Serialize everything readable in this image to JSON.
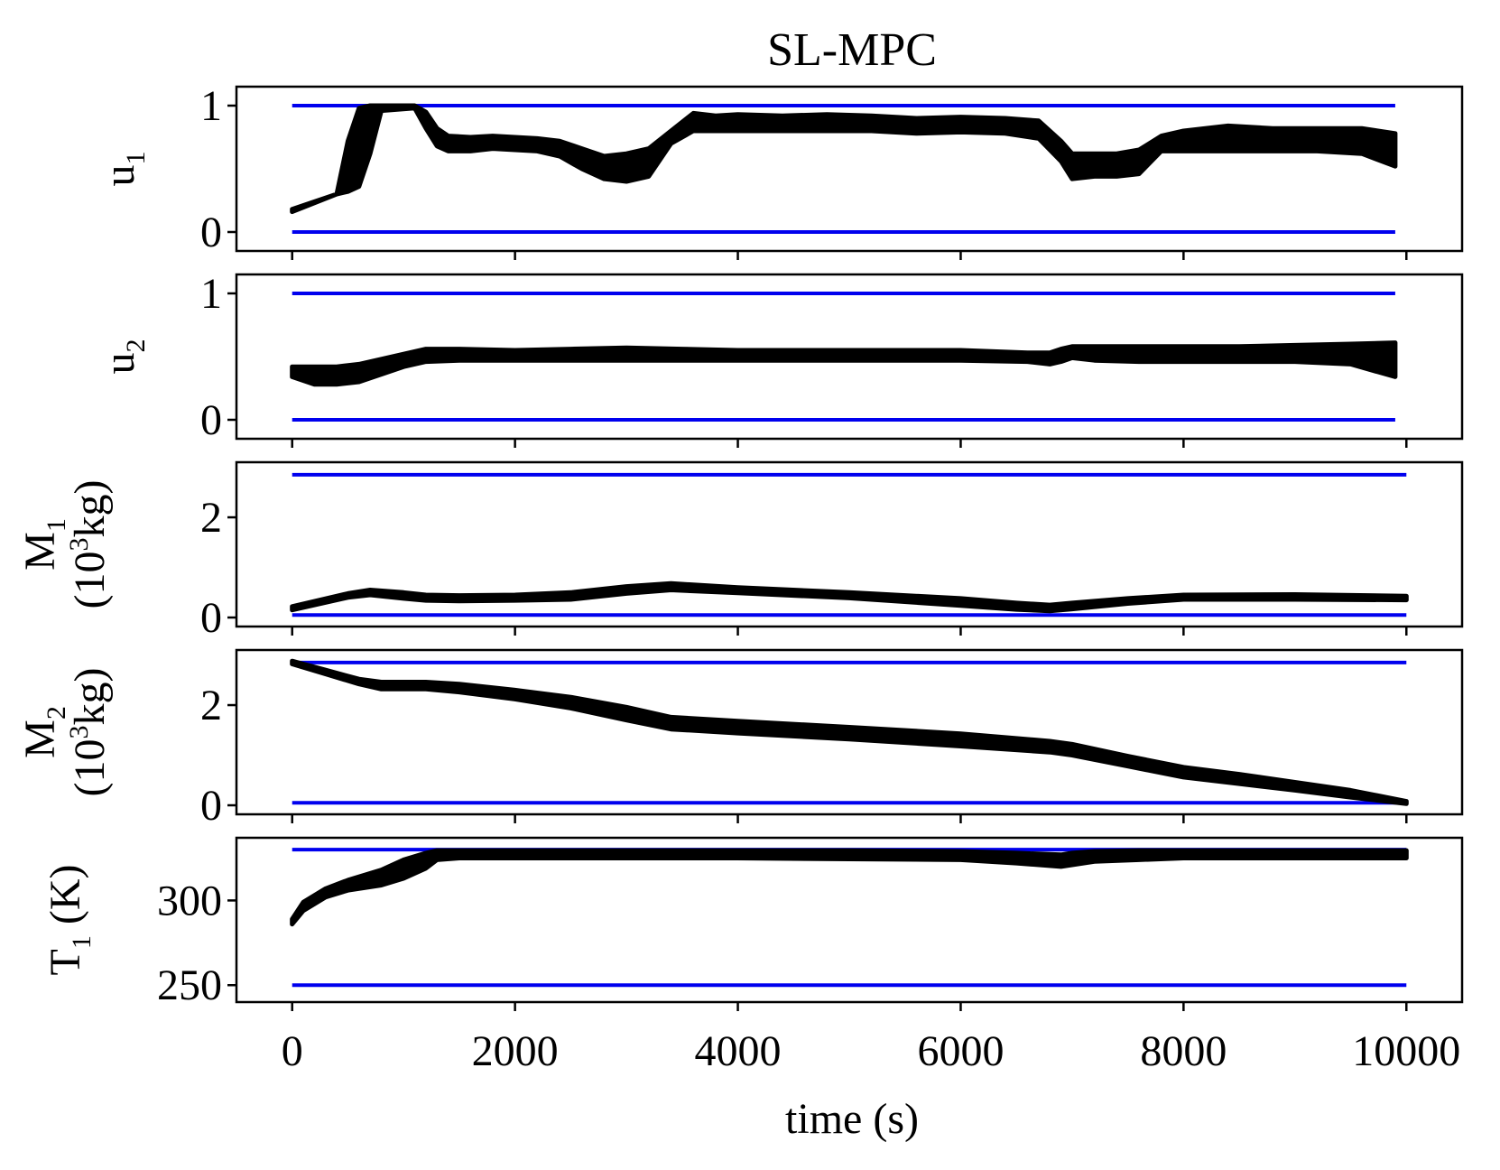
{
  "chart_data": {
    "type": "line",
    "title": "SL-MPC",
    "xlabel": "time (s)",
    "xlim": [
      -500,
      10500
    ],
    "xticks": [
      0,
      2000,
      4000,
      6000,
      8000,
      10000
    ],
    "xtick_labels": [
      "0",
      "2000",
      "4000",
      "6000",
      "8000",
      "10000"
    ],
    "bound_color": "#0000ee",
    "trajectory_color": "#000000",
    "subplots": [
      {
        "ylabel": "u",
        "ylabel_sub": "1",
        "ylim": [
          -0.15,
          1.15
        ],
        "yticks": [
          0,
          1
        ],
        "ytick_labels": [
          "0",
          "1"
        ],
        "bounds": {
          "lower": 0,
          "upper": 1,
          "x_range": [
            0,
            9900
          ]
        },
        "band": {
          "x": [
            0,
            400,
            500,
            600,
            700,
            800,
            1100,
            1200,
            1300,
            1400,
            1600,
            1800,
            2000,
            2200,
            2400,
            2600,
            2800,
            3000,
            3200,
            3400,
            3600,
            3800,
            4000,
            4400,
            4800,
            5200,
            5600,
            6000,
            6400,
            6700,
            6900,
            7000,
            7200,
            7400,
            7600,
            7800,
            8000,
            8400,
            8800,
            9200,
            9600,
            9900
          ],
          "upper": [
            0.18,
            0.3,
            0.72,
            0.98,
            1.0,
            1.0,
            1.0,
            0.95,
            0.82,
            0.76,
            0.75,
            0.76,
            0.75,
            0.74,
            0.72,
            0.66,
            0.6,
            0.62,
            0.66,
            0.8,
            0.94,
            0.92,
            0.93,
            0.92,
            0.93,
            0.92,
            0.9,
            0.91,
            0.9,
            0.88,
            0.72,
            0.62,
            0.62,
            0.62,
            0.65,
            0.76,
            0.8,
            0.84,
            0.82,
            0.82,
            0.82,
            0.78
          ],
          "lower": [
            0.16,
            0.3,
            0.32,
            0.36,
            0.62,
            0.96,
            0.98,
            0.82,
            0.68,
            0.64,
            0.64,
            0.66,
            0.65,
            0.64,
            0.6,
            0.5,
            0.42,
            0.4,
            0.44,
            0.7,
            0.8,
            0.8,
            0.8,
            0.8,
            0.8,
            0.8,
            0.78,
            0.79,
            0.78,
            0.74,
            0.56,
            0.42,
            0.44,
            0.44,
            0.46,
            0.64,
            0.64,
            0.64,
            0.64,
            0.64,
            0.62,
            0.52
          ]
        }
      },
      {
        "ylabel": "u",
        "ylabel_sub": "2",
        "ylim": [
          -0.15,
          1.15
        ],
        "yticks": [
          0,
          1
        ],
        "ytick_labels": [
          "0",
          "1"
        ],
        "bounds": {
          "lower": 0,
          "upper": 1,
          "x_range": [
            0,
            9900
          ]
        },
        "band": {
          "x": [
            0,
            200,
            400,
            600,
            800,
            1000,
            1200,
            1500,
            2000,
            2500,
            3000,
            3500,
            4000,
            5000,
            6000,
            6600,
            6800,
            6900,
            7000,
            7200,
            7600,
            8000,
            8500,
            9000,
            9500,
            9900
          ],
          "upper": [
            0.42,
            0.42,
            0.42,
            0.44,
            0.48,
            0.52,
            0.56,
            0.56,
            0.55,
            0.56,
            0.57,
            0.56,
            0.55,
            0.55,
            0.55,
            0.53,
            0.53,
            0.56,
            0.58,
            0.58,
            0.58,
            0.58,
            0.58,
            0.59,
            0.6,
            0.61
          ],
          "lower": [
            0.34,
            0.28,
            0.28,
            0.3,
            0.36,
            0.42,
            0.46,
            0.47,
            0.47,
            0.47,
            0.47,
            0.47,
            0.47,
            0.47,
            0.47,
            0.46,
            0.44,
            0.46,
            0.49,
            0.47,
            0.46,
            0.46,
            0.46,
            0.46,
            0.44,
            0.34
          ]
        }
      },
      {
        "ylabel": "M",
        "ylabel_sub": "1",
        "ylabel_units": "(10",
        "ylabel_units_sup": "3",
        "ylabel_units_rest": "kg)",
        "ylim": [
          -0.18,
          3.1
        ],
        "yticks": [
          0,
          2
        ],
        "ytick_labels": [
          "0",
          "2"
        ],
        "bounds": {
          "lower": 0.05,
          "upper": 2.85,
          "x_range": [
            0,
            10000
          ]
        },
        "band": {
          "x": [
            0,
            500,
            700,
            1000,
            1200,
            1500,
            2000,
            2500,
            3000,
            3400,
            4000,
            5000,
            6000,
            6500,
            6800,
            7000,
            7500,
            8000,
            9000,
            10000
          ],
          "upper": [
            0.22,
            0.48,
            0.55,
            0.5,
            0.45,
            0.44,
            0.45,
            0.5,
            0.62,
            0.68,
            0.6,
            0.5,
            0.38,
            0.29,
            0.25,
            0.29,
            0.38,
            0.45,
            0.46,
            0.43
          ],
          "lower": [
            0.15,
            0.4,
            0.45,
            0.38,
            0.34,
            0.33,
            0.34,
            0.36,
            0.48,
            0.55,
            0.49,
            0.39,
            0.24,
            0.16,
            0.13,
            0.17,
            0.28,
            0.36,
            0.36,
            0.35
          ]
        }
      },
      {
        "ylabel": "M",
        "ylabel_sub": "2",
        "ylabel_units": "(10",
        "ylabel_units_sup": "3",
        "ylabel_units_rest": "kg)",
        "ylim": [
          -0.18,
          3.1
        ],
        "yticks": [
          0,
          2
        ],
        "ytick_labels": [
          "0",
          "2"
        ],
        "bounds": {
          "lower": 0.05,
          "upper": 2.85,
          "x_range": [
            0,
            10000
          ]
        },
        "band": {
          "x": [
            0,
            300,
            600,
            800,
            1200,
            1500,
            2000,
            2500,
            3000,
            3400,
            4000,
            5000,
            6000,
            6800,
            7000,
            7500,
            8000,
            8500,
            9000,
            9500,
            10000
          ],
          "upper": [
            2.88,
            2.7,
            2.52,
            2.46,
            2.46,
            2.42,
            2.3,
            2.16,
            1.96,
            1.76,
            1.68,
            1.56,
            1.43,
            1.28,
            1.22,
            0.98,
            0.76,
            0.62,
            0.46,
            0.3,
            0.08
          ],
          "lower": [
            2.82,
            2.62,
            2.42,
            2.32,
            2.32,
            2.26,
            2.12,
            1.94,
            1.7,
            1.52,
            1.44,
            1.32,
            1.18,
            1.06,
            1.0,
            0.78,
            0.56,
            0.43,
            0.3,
            0.16,
            0.03
          ]
        }
      },
      {
        "ylabel": "T",
        "ylabel_sub": "1",
        "ylabel_units": "(K)",
        "ylim": [
          240,
          337
        ],
        "yticks": [
          250,
          300
        ],
        "ytick_labels": [
          "250",
          "300"
        ],
        "bounds": {
          "lower": 250,
          "upper": 330,
          "x_range": [
            0,
            10000
          ]
        },
        "band": {
          "x": [
            0,
            100,
            300,
            500,
            800,
            1000,
            1200,
            1300,
            1500,
            2000,
            3000,
            4000,
            5000,
            6000,
            6500,
            6900,
            7000,
            7200,
            7600,
            8000,
            9000,
            10000
          ],
          "upper": [
            289,
            299,
            307,
            312,
            318,
            324,
            328,
            329.5,
            329.5,
            329.5,
            329.5,
            329.5,
            329.5,
            329,
            328,
            327,
            328,
            329,
            329.5,
            329.5,
            329.5,
            329.5
          ],
          "lower": [
            286,
            294,
            302,
            306,
            309,
            313,
            319,
            324,
            325,
            325,
            325,
            325,
            324.5,
            324,
            322,
            320,
            321,
            323,
            324,
            325,
            325,
            325
          ]
        }
      }
    ]
  }
}
